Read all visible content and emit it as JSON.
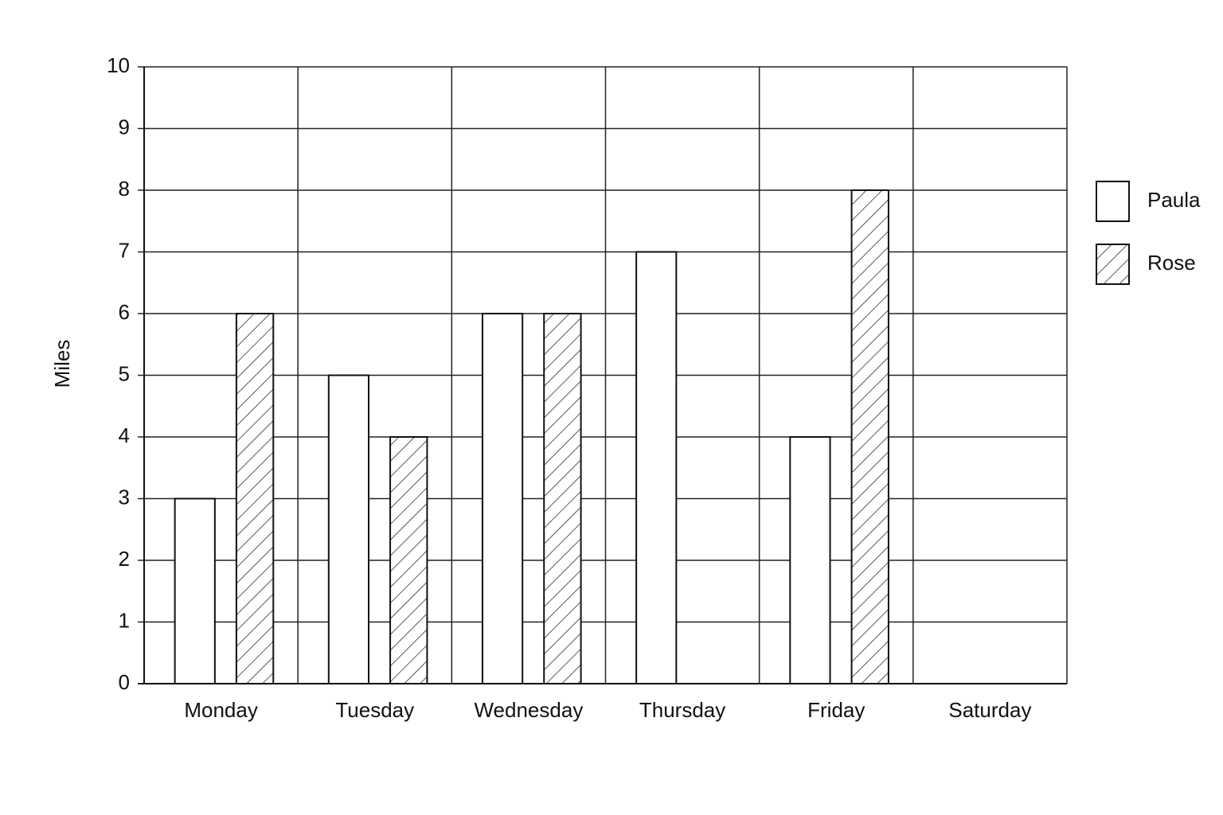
{
  "chart_data": {
    "type": "bar",
    "y_label": "Miles",
    "categories": [
      "Monday",
      "Tuesday",
      "Wednesday",
      "Thursday",
      "Friday",
      "Saturday"
    ],
    "series": [
      {
        "name": "Paula",
        "color": "#ffffff",
        "hatch": false,
        "values": [
          3,
          5,
          6,
          7,
          4,
          null
        ]
      },
      {
        "name": "Rose",
        "color": "#ffffff",
        "hatch": true,
        "values": [
          6,
          4,
          6,
          null,
          8,
          null
        ]
      }
    ],
    "ylim": [
      0,
      10
    ],
    "yticks": [
      0,
      1,
      2,
      3,
      4,
      5,
      6,
      7,
      8,
      9,
      10
    ],
    "grid": true,
    "legend": "right"
  }
}
